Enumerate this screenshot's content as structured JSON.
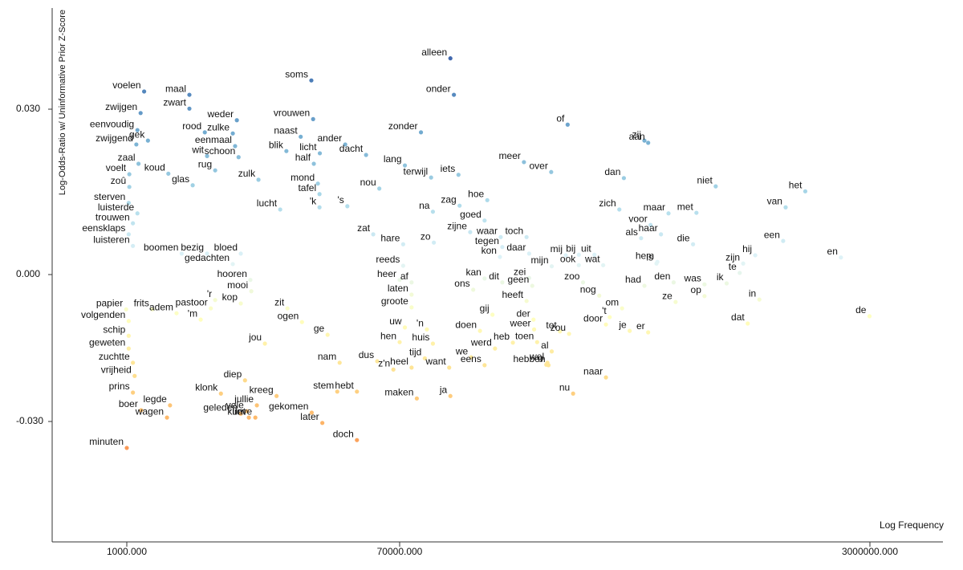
{
  "chart_data": {
    "type": "scatter",
    "xlabel": "Log Frequency",
    "ylabel": "Log-Odds-Ratio w/ Uninformative Prior Z-Score",
    "xscale": "log",
    "xlim": [
      313,
      5376000
    ],
    "ylim": [
      -0.0546,
      0.0483
    ],
    "xticks": [
      {
        "value": 1000,
        "label": "1000.000"
      },
      {
        "value": 70000,
        "label": "70000.000"
      },
      {
        "value": 3000000,
        "label": "3000000.000"
      }
    ],
    "yticks": [
      {
        "value": -0.03,
        "label": "-0.030"
      },
      {
        "value": 0,
        "label": "0.000"
      },
      {
        "value": 0.03,
        "label": "0.030"
      }
    ],
    "colorscale": [
      "#d73027",
      "#f46d43",
      "#fdae61",
      "#fee090",
      "#ffffbf",
      "#e0f3f8",
      "#abd9e9",
      "#74add1",
      "#4575b4",
      "#313695"
    ],
    "labels": [
      "alleen",
      "soms",
      "onder",
      "voelen",
      "maal",
      "zwijgen",
      "zwart",
      "eenvoudig",
      "rood",
      "zulke",
      "weder",
      "vrouwen",
      "naast",
      "zonder",
      "of",
      "zij",
      "aan",
      "zwijgend",
      "gek",
      "eenmaal",
      "wit",
      "schoon",
      "blik",
      "licht",
      "ander",
      "dacht",
      "lang",
      "meer",
      "zaal",
      "rug",
      "half",
      "koud",
      "voelt",
      "zulk",
      "over",
      "dan",
      "iets",
      "terwijl",
      "zoû",
      "glas",
      "mond",
      "nou",
      "tafel",
      "niet",
      "het",
      "sterven",
      "lucht",
      "'k",
      "'s",
      "zag",
      "hoe",
      "zich",
      "na",
      "luisterde",
      "trouwen",
      "goed",
      "maar",
      "met",
      "van",
      "voor",
      "eensklaps",
      "zat",
      "zijne",
      "waar",
      "toch",
      "haar",
      "hare",
      "zo",
      "tegen",
      "als",
      "luisteren",
      "boomen",
      "bezig",
      "bloed",
      "een",
      "die",
      "kon",
      "daar",
      "mij",
      "bij",
      "uit",
      "gedachten",
      "reeds",
      "hem",
      "zijn",
      "hij",
      "en",
      "mijn",
      "ook",
      "wat",
      "is",
      "kan",
      "dit",
      "zei",
      "heer",
      "af",
      "hooren",
      "was",
      "te",
      "ons",
      "mooi",
      "laten",
      "geen",
      "zoo",
      "had",
      "den",
      "ik",
      "heeft",
      "nog",
      "op",
      "in",
      "papier",
      "frits",
      "adem",
      "pastoor",
      "'r",
      "kop",
      "zit",
      "groote",
      "ze",
      "gij",
      "om",
      "volgenden",
      "ogen",
      "der",
      "door",
      "'t",
      "dat",
      "de",
      "'m",
      "uw",
      "doen",
      "weer",
      "tot",
      "schip",
      "ge",
      "'n",
      "je",
      "er",
      "jou",
      "hen",
      "huis",
      "heb",
      "toen",
      "zou",
      "geweten",
      "werd",
      "al",
      "zuchtte",
      "tijd",
      "nam",
      "dus",
      "we",
      "z'n",
      "wel",
      "vrijheid",
      "diep",
      "heel",
      "want",
      "eens",
      "hebben",
      "u",
      "naar",
      "prins",
      "stem",
      "kreeg",
      "hebt",
      "maken",
      "ja",
      "nu",
      "klonk",
      "boer",
      "legde",
      "vele",
      "jullie",
      "gekomen",
      "geleden",
      "lieve",
      "wagen",
      "kunt",
      "later",
      "minuten",
      "doch"
    ],
    "x": [
      105000,
      17700,
      108000,
      1310,
      2650,
      1240,
      2650,
      1180,
      3370,
      5210,
      5550,
      18200,
      15000,
      83000,
      268000,
      495000,
      510000,
      1160,
      1390,
      5400,
      3490,
      5700,
      12000,
      20200,
      30000,
      41500,
      73000,
      189000,
      1200,
      3960,
      18400,
      1910,
      1040,
      7770,
      235000,
      420000,
      112000,
      90000,
      1040,
      2790,
      19600,
      51000,
      20100,
      875000,
      1790000,
      1030,
      10900,
      20100,
      31000,
      113000,
      141000,
      405000,
      91300,
      1180,
      1100,
      138000,
      600000,
      750000,
      1530000,
      520000,
      1030,
      46400,
      123000,
      157000,
      193000,
      565000,
      72000,
      92000,
      159000,
      482000,
      1100,
      2350,
      3490,
      5900,
      1500000,
      730000,
      156000,
      197000,
      264000,
      293000,
      332000,
      5210,
      72000,
      549000,
      1090000,
      1200000,
      2380000,
      236000,
      293000,
      356000,
      545000,
      138000,
      159000,
      197000,
      70000,
      77000,
      6850,
      800000,
      1060000,
      126000,
      6950,
      77000,
      202000,
      303000,
      495000,
      625000,
      955000,
      193000,
      345000,
      800000,
      1240000,
      990,
      1490,
      2170,
      3700,
      3960,
      5900,
      12200,
      77000,
      635000,
      147000,
      414000,
      1030,
      15300,
      204000,
      364000,
      375000,
      1130000,
      2990000,
      3160,
      73000,
      133000,
      205000,
      252000,
      1030,
      22800,
      87000,
      440000,
      510000,
      8590,
      70000,
      91300,
      173000,
      210000,
      271000,
      1030,
      150000,
      236000,
      1100,
      85600,
      27500,
      49400,
      124000,
      63500,
      228000,
      1130,
      6300,
      77000,
      104000,
      138000,
      230000,
      226000,
      364000,
      1100,
      26500,
      10300,
      36000,
      80300,
      105000,
      280000,
      4330,
      1250,
      1960,
      6500,
      7580,
      17800,
      5900,
      7400,
      1870,
      6690,
      21000,
      1000,
      36000
    ],
    "values": [
      0.0392,
      0.0352,
      0.0326,
      0.0332,
      0.0326,
      0.0293,
      0.0301,
      0.0262,
      0.0258,
      0.0256,
      0.028,
      0.0282,
      0.025,
      0.0258,
      0.0272,
      0.0243,
      0.0239,
      0.0236,
      0.0243,
      0.0233,
      0.0215,
      0.0213,
      0.0224,
      0.022,
      0.0236,
      0.0217,
      0.0198,
      0.0204,
      0.0201,
      0.0189,
      0.0201,
      0.0183,
      0.0182,
      0.0172,
      0.0186,
      0.0175,
      0.0181,
      0.0176,
      0.0159,
      0.0162,
      0.0165,
      0.0156,
      0.0146,
      0.016,
      0.0151,
      0.013,
      0.0118,
      0.0122,
      0.0124,
      0.0125,
      0.0135,
      0.0118,
      0.0114,
      0.0111,
      0.0093,
      0.0098,
      0.0111,
      0.0112,
      0.0122,
      0.009,
      0.0073,
      0.0073,
      0.0077,
      0.0068,
      0.0068,
      0.0073,
      0.0055,
      0.0058,
      0.005,
      0.0066,
      0.0052,
      0.0038,
      0.0038,
      0.0038,
      0.0061,
      0.0055,
      0.0032,
      0.0038,
      0.0035,
      0.0036,
      0.0036,
      0.0019,
      0.0016,
      0.0023,
      0.002,
      0.0035,
      0.0031,
      0.0015,
      0.0017,
      0.0017,
      0.002,
      -0.0008,
      -0.0016,
      -0.0007,
      -0.0011,
      -0.0016,
      -0.0011,
      -0.002,
      0.0003,
      -0.0031,
      -0.0034,
      -0.0041,
      -0.0023,
      -0.0016,
      -0.0023,
      -0.0016,
      -0.0018,
      -0.0054,
      -0.0043,
      -0.0044,
      -0.0051,
      -0.0071,
      -0.0071,
      -0.0079,
      -0.0069,
      -0.0052,
      -0.0059,
      -0.0069,
      -0.0067,
      -0.0056,
      -0.0082,
      -0.0069,
      -0.0095,
      -0.0097,
      -0.0092,
      -0.0102,
      -0.0087,
      -0.01,
      -0.0085,
      -0.0092,
      -0.0108,
      -0.0115,
      -0.0112,
      -0.0116,
      -0.0125,
      -0.0123,
      -0.0112,
      -0.0115,
      -0.0118,
      -0.0141,
      -0.0138,
      -0.0141,
      -0.0139,
      -0.0138,
      -0.0121,
      -0.0151,
      -0.0151,
      -0.0157,
      -0.018,
      -0.0171,
      -0.018,
      -0.0177,
      -0.0169,
      -0.0194,
      -0.018,
      -0.0207,
      -0.0216,
      -0.019,
      -0.019,
      -0.0185,
      -0.0185,
      -0.0184,
      -0.021,
      -0.0241,
      -0.0239,
      -0.0248,
      -0.0239,
      -0.0253,
      -0.0248,
      -0.0243,
      -0.0243,
      -0.0277,
      -0.0267,
      -0.0279,
      -0.0267,
      -0.0282,
      -0.0284,
      -0.0292,
      -0.0292,
      -0.0292,
      -0.0303,
      -0.0354,
      -0.0338
    ]
  }
}
